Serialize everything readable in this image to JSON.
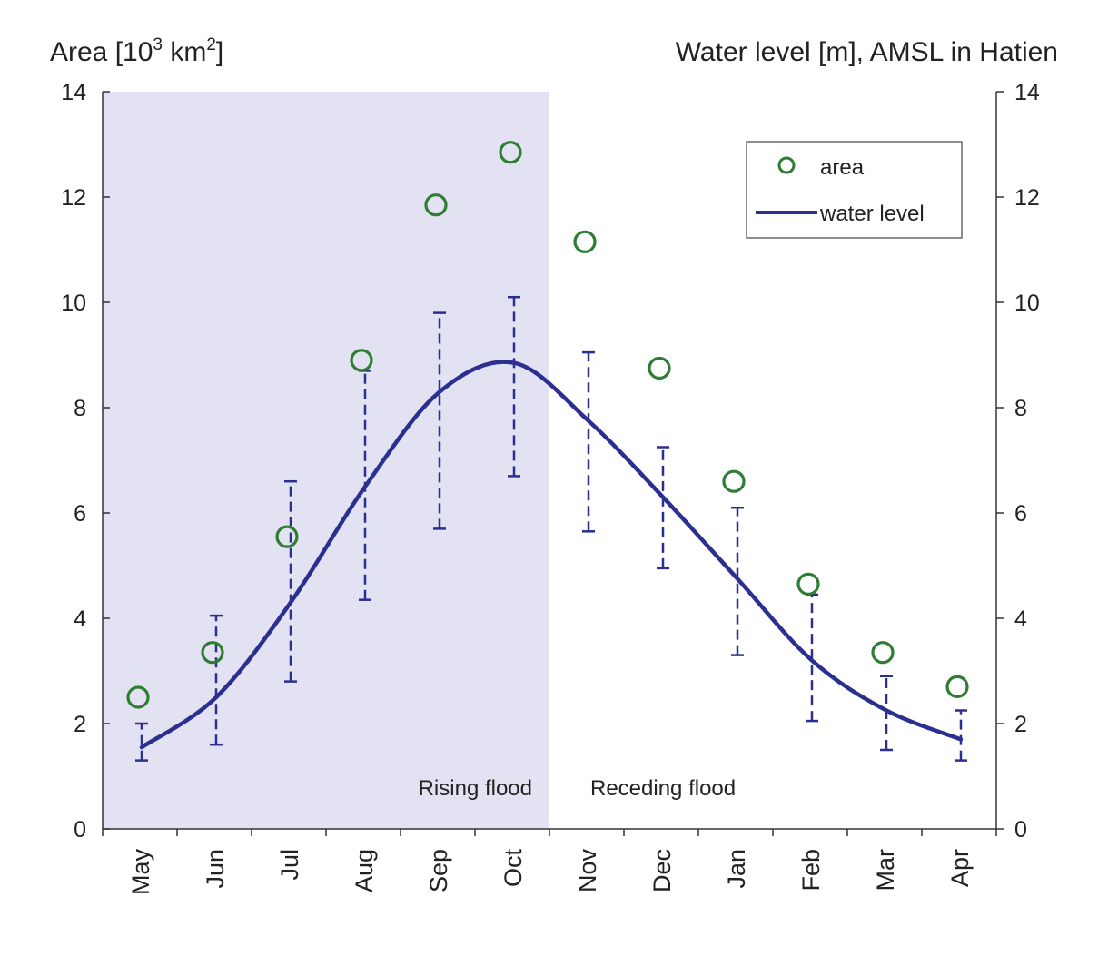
{
  "chart_data": {
    "type": "line",
    "ylabel_left_prefix": "Area [10",
    "ylabel_left_sup1": "3",
    "ylabel_left_mid": " km",
    "ylabel_left_sup2": "2",
    "ylabel_left_suffix": "]",
    "ylabel_right": "Water level [m], AMSL in Hatien",
    "ylim": [
      0,
      14
    ],
    "yticks": [
      0,
      2,
      4,
      6,
      8,
      10,
      12,
      14
    ],
    "y_tick_labels": [
      "0",
      "2",
      "4",
      "6",
      "8",
      "10",
      "12",
      "14"
    ],
    "categories": [
      "May",
      "Jun",
      "Jul",
      "Aug",
      "Sep",
      "Oct",
      "Nov",
      "Dec",
      "Jan",
      "Feb",
      "Mar",
      "Apr"
    ],
    "regions": [
      {
        "label": "Rising flood",
        "from_index": 0,
        "to_index": 5,
        "color": "#e2e2f2"
      },
      {
        "label": "Receding flood",
        "from_index": 6,
        "to_index": 11,
        "color": "#ffffff"
      }
    ],
    "series": [
      {
        "name": "area",
        "kind": "scatter",
        "color": "#2e7d32",
        "values": [
          2.5,
          3.35,
          5.55,
          8.9,
          11.85,
          12.85,
          11.15,
          8.75,
          6.6,
          4.65,
          3.35,
          2.7
        ]
      },
      {
        "name": "water level",
        "kind": "line",
        "color": "#2b2f8f",
        "values": [
          1.55,
          2.5,
          4.3,
          6.5,
          8.3,
          8.85,
          7.75,
          6.3,
          4.75,
          3.2,
          2.25,
          1.7
        ],
        "error_low": [
          1.3,
          1.6,
          2.8,
          4.35,
          5.7,
          6.7,
          5.65,
          4.95,
          3.3,
          2.05,
          1.5,
          1.3
        ],
        "error_high": [
          2.0,
          4.05,
          6.6,
          8.7,
          9.8,
          10.1,
          9.05,
          7.25,
          6.1,
          4.45,
          2.9,
          2.25
        ]
      }
    ],
    "legend": {
      "position": "top-right",
      "entries": [
        "area",
        "water level"
      ]
    }
  }
}
